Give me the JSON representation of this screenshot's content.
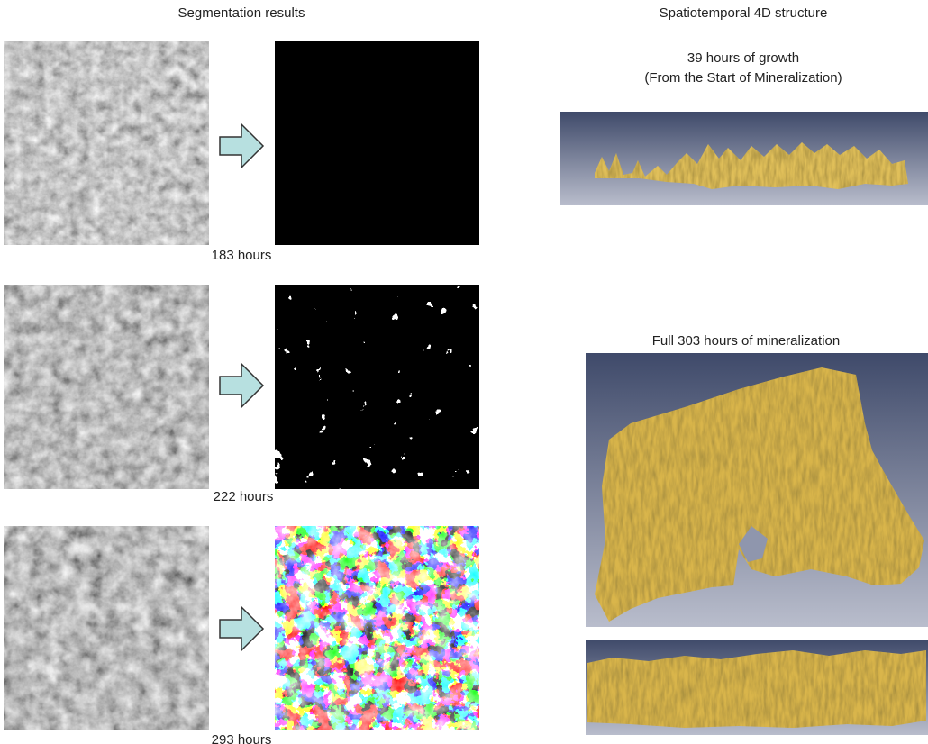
{
  "left": {
    "title": "Segmentation results",
    "rows": [
      {
        "label": "183 hours"
      },
      {
        "label": "222 hours"
      },
      {
        "label": "293 hours"
      }
    ]
  },
  "right": {
    "title": "Spatiotemporal 4D structure",
    "panel1": {
      "title": "39 hours of growth",
      "subtitle": "(From the Start of Mineralization)"
    },
    "panel2": {
      "title": "Full 303 hours of mineralization"
    }
  }
}
